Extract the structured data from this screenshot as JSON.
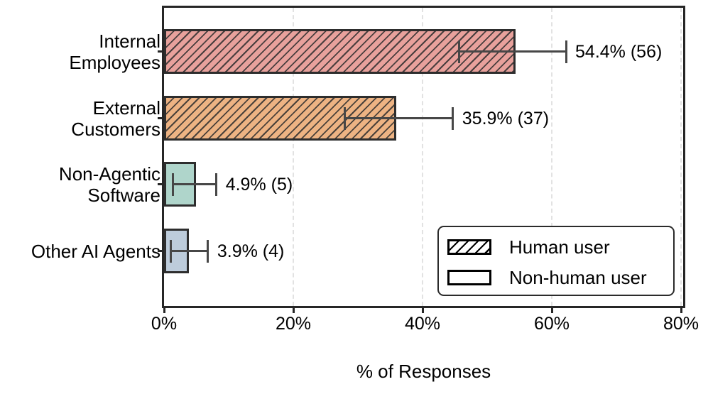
{
  "chart_data": {
    "type": "bar",
    "orientation": "horizontal",
    "title": "",
    "xlabel": "% of Responses",
    "ylabel": "",
    "xlim": [
      0,
      80.6
    ],
    "x_tick_values": [
      0,
      20,
      40,
      60,
      80
    ],
    "x_tick_labels": [
      "0%",
      "20%",
      "40%",
      "60%",
      "80%"
    ],
    "grid": {
      "vertical": true,
      "style": "dashed"
    },
    "categories": [
      "Internal\nEmployees",
      "External\nCustomers",
      "Non-Agentic\nSoftware",
      "Other AI Agents"
    ],
    "values": [
      54.4,
      35.9,
      4.9,
      3.9
    ],
    "counts": [
      56,
      37,
      5,
      4
    ],
    "value_labels": [
      "54.4% (56)",
      "35.9% (37)",
      "4.9% (5)",
      "3.9% (4)"
    ],
    "error_low": [
      45.7,
      28.0,
      1.4,
      1.0
    ],
    "error_high": [
      62.2,
      44.7,
      8.1,
      6.8
    ],
    "bar_colors": [
      "#E8A19C",
      "#EDB383",
      "#AFD5CB",
      "#BDCCDB"
    ],
    "hatched": [
      true,
      true,
      false,
      false
    ],
    "legend": {
      "position": "lower right inside plot",
      "entries": [
        {
          "label": "Human user",
          "swatch": "hatched"
        },
        {
          "label": "Non-human user",
          "swatch": "plain"
        }
      ]
    }
  },
  "colors": {
    "bar_edge": "#2d2d2d",
    "error_bar": "#474747",
    "grid": "#e2e2e2",
    "axis": "#262626",
    "text": "#000000",
    "background": "#ffffff"
  }
}
